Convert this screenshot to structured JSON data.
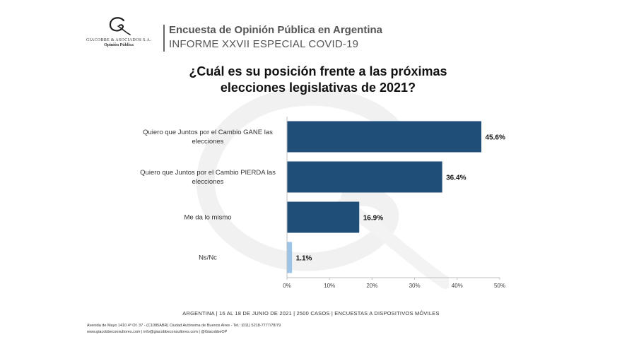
{
  "logo": {
    "name": "GIACOBBE & ASOCIADOS S.A.",
    "subtitle": "Opinión Pública"
  },
  "header": {
    "title": "Encuesta de Opinión Pública en Argentina",
    "subtitle": "INFORME XXVII ESPECIAL COVID-19"
  },
  "chart_data": {
    "type": "bar",
    "orientation": "horizontal",
    "title": "¿Cuál es su posición frente a las próximas elecciones legislativas de 2021?",
    "title_lines": [
      "¿Cuál es su posición frente a las próximas",
      "elecciones legislativas de 2021?"
    ],
    "categories": [
      [
        "Quiero que Juntos por el Cambio GANE las",
        "elecciones"
      ],
      [
        "Quiero que Juntos por el Cambio PIERDA las",
        "elecciones"
      ],
      [
        "Me da lo mismo"
      ],
      [
        "Ns/Nc"
      ]
    ],
    "values": [
      45.6,
      36.4,
      16.9,
      1.1
    ],
    "value_labels": [
      "45.6%",
      "36.4%",
      "16.9%",
      "1.1%"
    ],
    "colors": [
      "#1f4e79",
      "#1f4e79",
      "#1f4e79",
      "#9dc3e6"
    ],
    "xlim": [
      0,
      50
    ],
    "xticks": [
      "0%",
      "10%",
      "20%",
      "30%",
      "40%",
      "50%"
    ],
    "xlabel": "",
    "ylabel": "",
    "grid": false
  },
  "footer": {
    "main": "ARGENTINA | 16 AL 18 DE JUNIO DE 2021 | 2500 CASOS | ENCUESTAS A DISPOSITIVOS MÓVILES",
    "address": "Avenida de Mayo 1410 4º Of. 37 - (C1085ABR) Ciudad Autónoma de Buenos Aires - Tel.: (011) 5218-7777/78/79",
    "web": "www.giacobbeconsultores.com | info@giacobbeconsultores.com | @GiacobbeOP"
  }
}
